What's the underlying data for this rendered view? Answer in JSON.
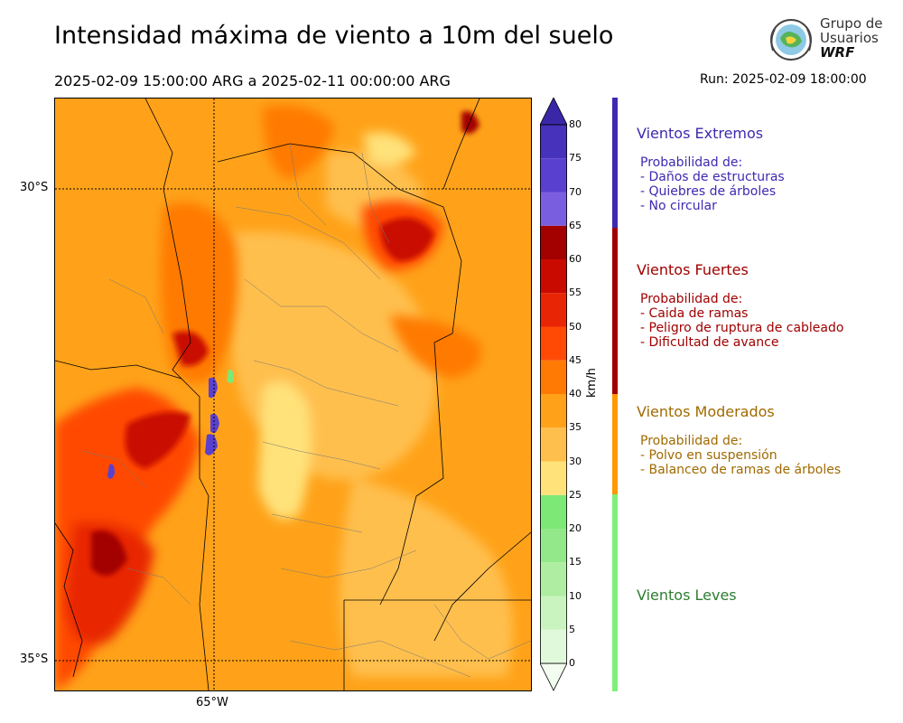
{
  "title": "Intensidad máxima de viento a 10m del suelo",
  "period": "2025-02-09 15:00:00 ARG  a  2025-02-11 00:00:00 ARG",
  "run": "Run: 2025-02-09 18:00:00",
  "logo": {
    "line1": "Grupo de",
    "line2": "Usuarios",
    "line3": "WRF"
  },
  "map": {
    "lat_labels": [
      "30°S",
      "35°S"
    ],
    "lon_labels": [
      "65°W"
    ]
  },
  "colorbar": {
    "unit": "km/h",
    "ticks": [
      "0",
      "5",
      "10",
      "15",
      "20",
      "25",
      "30",
      "35",
      "40",
      "45",
      "50",
      "55",
      "60",
      "65",
      "70",
      "75",
      "80"
    ],
    "colors": [
      "#f2fdf0",
      "#e0f9da",
      "#c9f4bf",
      "#afeea2",
      "#93e989",
      "#7de875",
      "#ffe27a",
      "#ffbf4d",
      "#ffa219",
      "#ff7a05",
      "#ff4a05",
      "#e82505",
      "#c90a00",
      "#a30000",
      "#7a5ee0",
      "#5a40cf",
      "#4632bb",
      "#3927a8"
    ]
  },
  "categories": [
    {
      "title": "Vientos Extremos",
      "color": "#3d2ab0",
      "lines": [
        "Probabilidad de:",
        "- Daños de estructuras",
        "- Quiebres de árboles",
        "- No circular"
      ]
    },
    {
      "title": "Vientos Fuertes",
      "color": "#a00000",
      "lines": [
        "Probabilidad de:",
        "- Caida de ramas",
        "- Peligro de ruptura de cableado",
        "- Dificultad de avance"
      ]
    },
    {
      "title": "Vientos Moderados",
      "color": "#a06a00",
      "lines": [
        "Probabilidad de:",
        "- Polvo en suspensión",
        "- Balanceo de ramas de árboles"
      ]
    },
    {
      "title": "Vientos Leves",
      "color": "#2e7d32",
      "lines": []
    }
  ],
  "category_bar_colors": [
    "#3d2ab0",
    "#a00000",
    "#ff9900",
    "#7ef07a"
  ]
}
